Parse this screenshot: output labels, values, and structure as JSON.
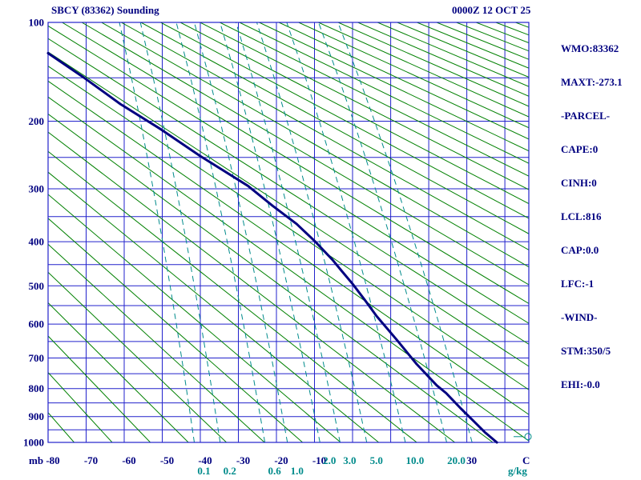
{
  "header": {
    "title": "SBCY (83362) Sounding",
    "datetime": "0000Z 12 OCT 25"
  },
  "info_panel": {
    "lines": [
      "WMO:83362",
      "MAXT:-273.1",
      "-PARCEL-",
      "CAPE:0",
      "CINH:0",
      "LCL:816",
      "CAP:0.0",
      "LFC:-1",
      "-WIND-",
      "STM:350/5",
      "EHI:-0.0"
    ]
  },
  "chart_data": {
    "type": "line",
    "diagram": "stuve-thermodynamic-sounding",
    "title": "SBCY (83362) Sounding",
    "station": "SBCY",
    "wmo_id": "83362",
    "valid": "0000Z 12 OCT 25",
    "pressure_unit": "mb",
    "temperature_unit": "C",
    "mixing_ratio_unit": "g/kg",
    "pressure_range": [
      100,
      1000
    ],
    "pressure_axis": [
      100,
      200,
      300,
      400,
      500,
      600,
      700,
      800,
      900,
      1000
    ],
    "pressure_gridline_step": 50,
    "temp_range": [
      -80,
      46.3
    ],
    "temp_labels": [
      -80,
      -70,
      -60,
      -50,
      -40,
      -30,
      -20,
      -10,
      30
    ],
    "isotherm_range": [
      -80,
      40
    ],
    "isotherm_step": 10,
    "dry_adiabats_theta_k": {
      "start": 200,
      "end": 610,
      "step": 10
    },
    "mixing_ratio_lines": [
      0.1,
      0.2,
      0.6,
      1,
      2,
      3,
      5,
      10,
      20,
      30
    ],
    "mixing_ratio_labels": {
      "upper": [
        {
          "v": "2.0",
          "w": 2
        },
        {
          "v": "3.0",
          "w": 3
        },
        {
          "v": "5.0",
          "w": 5
        },
        {
          "v": "10.0",
          "w": 10
        },
        {
          "v": "20.0",
          "w": 20
        }
      ],
      "lower": [
        {
          "v": "0.1",
          "w": 0.1
        },
        {
          "v": "0.2",
          "w": 0.2
        },
        {
          "v": "0.6",
          "w": 0.6
        },
        {
          "v": "1.0",
          "w": 1
        }
      ]
    },
    "series": [
      {
        "name": "temperature",
        "color": "#000080",
        "points_format": "[pressure_mb, temperature_c]",
        "points": [
          [
            126,
            -80.0
          ],
          [
            150,
            -70.5
          ],
          [
            179,
            -61.0
          ],
          [
            210,
            -50.5
          ],
          [
            248,
            -40.0
          ],
          [
            295,
            -27.5
          ],
          [
            330,
            -21.0
          ],
          [
            364,
            -14.7
          ],
          [
            400,
            -9.8
          ],
          [
            439,
            -5.3
          ],
          [
            465,
            -2.8
          ],
          [
            495,
            0.0
          ],
          [
            535,
            3.2
          ],
          [
            578,
            6.3
          ],
          [
            645,
            11.6
          ],
          [
            719,
            16.8
          ],
          [
            789,
            22.1
          ],
          [
            816,
            24.6
          ],
          [
            870,
            28.4
          ],
          [
            914,
            31.6
          ],
          [
            959,
            34.7
          ],
          [
            1000,
            37.9
          ]
        ]
      }
    ],
    "wind_marker": {
      "pressure": 977,
      "symbol": "calm"
    },
    "ylim": [
      1000,
      100
    ],
    "grid": true,
    "colors": {
      "grid_blue": "#2222cc",
      "adiabat_green": "#008000",
      "mixing_teal": "#008b8b",
      "trace_navy": "#000080",
      "text_navy": "#000080",
      "label_teal": "#008b8b"
    }
  }
}
